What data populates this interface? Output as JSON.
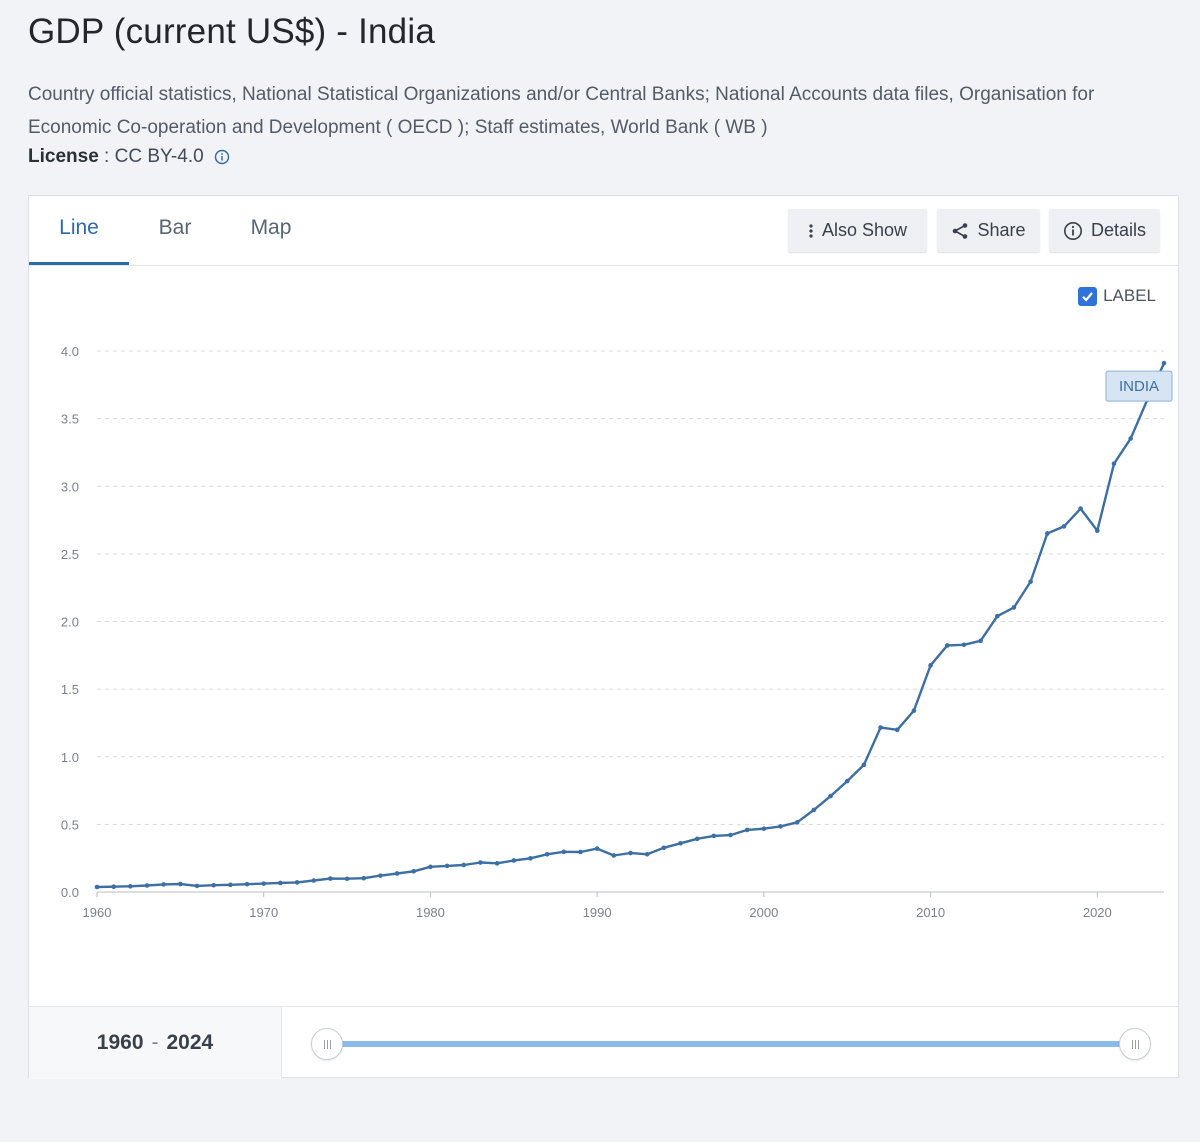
{
  "page": {
    "title": "GDP (current US$) - India",
    "source": "Country official statistics, National Statistical Organizations and/or Central Banks; National Accounts data files, Organisation for Economic Co-operation and Development ( OECD ); Staff estimates, World Bank ( WB )",
    "license_label": "License",
    "license_sep": " : ",
    "license_value": "CC BY-4.0"
  },
  "tabs": [
    {
      "label": "Line",
      "active": true
    },
    {
      "label": "Bar",
      "active": false
    },
    {
      "label": "Map",
      "active": false
    }
  ],
  "toolbar": {
    "also_show_label": "Also Show",
    "share_label": "Share",
    "details_label": "Details"
  },
  "label_toggle": {
    "label": "LABEL",
    "checked": true
  },
  "footer": {
    "range_start": "1960",
    "range_sep": "-",
    "range_end": "2024"
  },
  "colors": {
    "line": "#3d6fa3",
    "accent": "#2f6aa8",
    "slider": "#8bbbe9",
    "label_bg": "#d6e4f3"
  },
  "chart_data": {
    "type": "line",
    "xlim": [
      1960,
      2024
    ],
    "ylim": [
      0,
      4
    ],
    "x_ticks": [
      1960,
      1970,
      1980,
      1990,
      2000,
      2010,
      2020
    ],
    "y_ticks": [
      "0.0",
      "0.5",
      "1.0",
      "1.5",
      "2.0",
      "2.5",
      "3.0",
      "3.5",
      "4.0"
    ],
    "grid": true,
    "series": [
      {
        "name": "INDIA",
        "x": [
          1960,
          1961,
          1962,
          1963,
          1964,
          1965,
          1966,
          1967,
          1968,
          1969,
          1970,
          1971,
          1972,
          1973,
          1974,
          1975,
          1976,
          1977,
          1978,
          1979,
          1980,
          1981,
          1982,
          1983,
          1984,
          1985,
          1986,
          1987,
          1988,
          1989,
          1990,
          1991,
          1992,
          1993,
          1994,
          1995,
          1996,
          1997,
          1998,
          1999,
          2000,
          2001,
          2002,
          2003,
          2004,
          2005,
          2006,
          2007,
          2008,
          2009,
          2010,
          2011,
          2012,
          2013,
          2014,
          2015,
          2016,
          2017,
          2018,
          2019,
          2020,
          2021,
          2022,
          2023,
          2024
        ],
        "y": [
          0.037,
          0.039,
          0.042,
          0.048,
          0.056,
          0.059,
          0.045,
          0.05,
          0.053,
          0.058,
          0.062,
          0.067,
          0.071,
          0.085,
          0.099,
          0.098,
          0.102,
          0.121,
          0.137,
          0.153,
          0.186,
          0.193,
          0.2,
          0.218,
          0.212,
          0.233,
          0.249,
          0.279,
          0.297,
          0.296,
          0.321,
          0.27,
          0.288,
          0.279,
          0.327,
          0.36,
          0.393,
          0.415,
          0.421,
          0.459,
          0.468,
          0.485,
          0.515,
          0.607,
          0.709,
          0.82,
          0.94,
          1.216,
          1.199,
          1.341,
          1.676,
          1.823,
          1.828,
          1.857,
          2.039,
          2.104,
          2.295,
          2.651,
          2.703,
          2.835,
          2.671,
          3.167,
          3.353,
          3.639,
          3.91
        ]
      }
    ]
  }
}
